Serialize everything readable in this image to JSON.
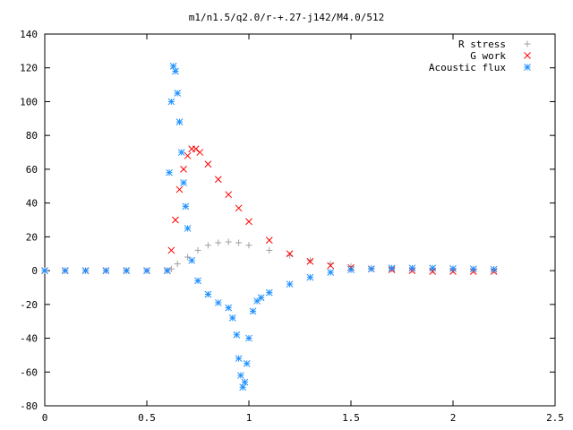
{
  "chart_data": {
    "type": "scatter",
    "title": "m1/n1.5/q2.0/r-+.27-j142/M4.0/512",
    "xlabel": "",
    "ylabel": "",
    "xlim": [
      0,
      2.5
    ],
    "ylim": [
      -80,
      140
    ],
    "xticks": [
      "0",
      "0.5",
      "1",
      "1.5",
      "2",
      "2.5"
    ],
    "yticks": [
      "-80",
      "-60",
      "-40",
      "-20",
      "0",
      "20",
      "40",
      "60",
      "80",
      "100",
      "120",
      "140"
    ],
    "legend_position": "top-right",
    "series": [
      {
        "name": "R stress",
        "marker": "plus",
        "color": "#a0a0a0",
        "x": [
          0,
          0.1,
          0.2,
          0.3,
          0.4,
          0.5,
          0.6,
          0.62,
          0.65,
          0.7,
          0.75,
          0.8,
          0.85,
          0.9,
          0.95,
          1.0,
          1.1,
          1.2,
          1.3,
          1.4,
          1.5,
          1.6,
          1.7,
          1.8,
          1.9,
          2.0,
          2.1,
          2.2
        ],
        "y": [
          0,
          0,
          0,
          0,
          0,
          0,
          0,
          1,
          4,
          8,
          12,
          15,
          16.5,
          17,
          16.5,
          15,
          12,
          9,
          6,
          4,
          2.5,
          1.5,
          1,
          0.5,
          0.3,
          0.2,
          0.1,
          0.1
        ]
      },
      {
        "name": "G work",
        "marker": "cross",
        "color": "#ff0000",
        "x": [
          0,
          0.1,
          0.2,
          0.3,
          0.4,
          0.5,
          0.6,
          0.62,
          0.64,
          0.66,
          0.68,
          0.7,
          0.72,
          0.74,
          0.76,
          0.8,
          0.85,
          0.9,
          0.95,
          1.0,
          1.1,
          1.2,
          1.3,
          1.4,
          1.5,
          1.6,
          1.7,
          1.8,
          1.9,
          2.0,
          2.1,
          2.2
        ],
        "y": [
          0,
          0,
          0,
          0,
          0,
          0,
          0,
          12,
          30,
          48,
          60,
          68,
          72,
          72,
          70,
          63,
          54,
          45,
          37,
          29,
          18,
          10,
          5.5,
          3,
          1.8,
          1,
          0.5,
          0,
          -0.5,
          -0.5,
          -0.5,
          -0.5
        ]
      },
      {
        "name": "Acoustic flux",
        "marker": "star",
        "color": "#1e90ff",
        "x": [
          0,
          0.1,
          0.2,
          0.3,
          0.4,
          0.5,
          0.6,
          0.61,
          0.62,
          0.63,
          0.64,
          0.65,
          0.66,
          0.67,
          0.68,
          0.69,
          0.7,
          0.72,
          0.75,
          0.8,
          0.85,
          0.9,
          0.92,
          0.94,
          0.95,
          0.96,
          0.97,
          0.98,
          0.99,
          1.0,
          1.02,
          1.04,
          1.06,
          1.1,
          1.2,
          1.3,
          1.4,
          1.5,
          1.6,
          1.7,
          1.8,
          1.9,
          2.0,
          2.1,
          2.2
        ],
        "y": [
          0,
          0,
          0,
          0,
          0,
          0,
          0,
          58,
          100,
          121,
          118,
          105,
          88,
          70,
          52,
          38,
          25,
          6,
          -6,
          -14,
          -19,
          -22,
          -28,
          -38,
          -52,
          -62,
          -69,
          -66,
          -55,
          -40,
          -24,
          -18,
          -16,
          -13,
          -8,
          -4,
          -1,
          0.5,
          1,
          1.5,
          1.5,
          1.5,
          1.2,
          1,
          0.8
        ]
      }
    ]
  }
}
